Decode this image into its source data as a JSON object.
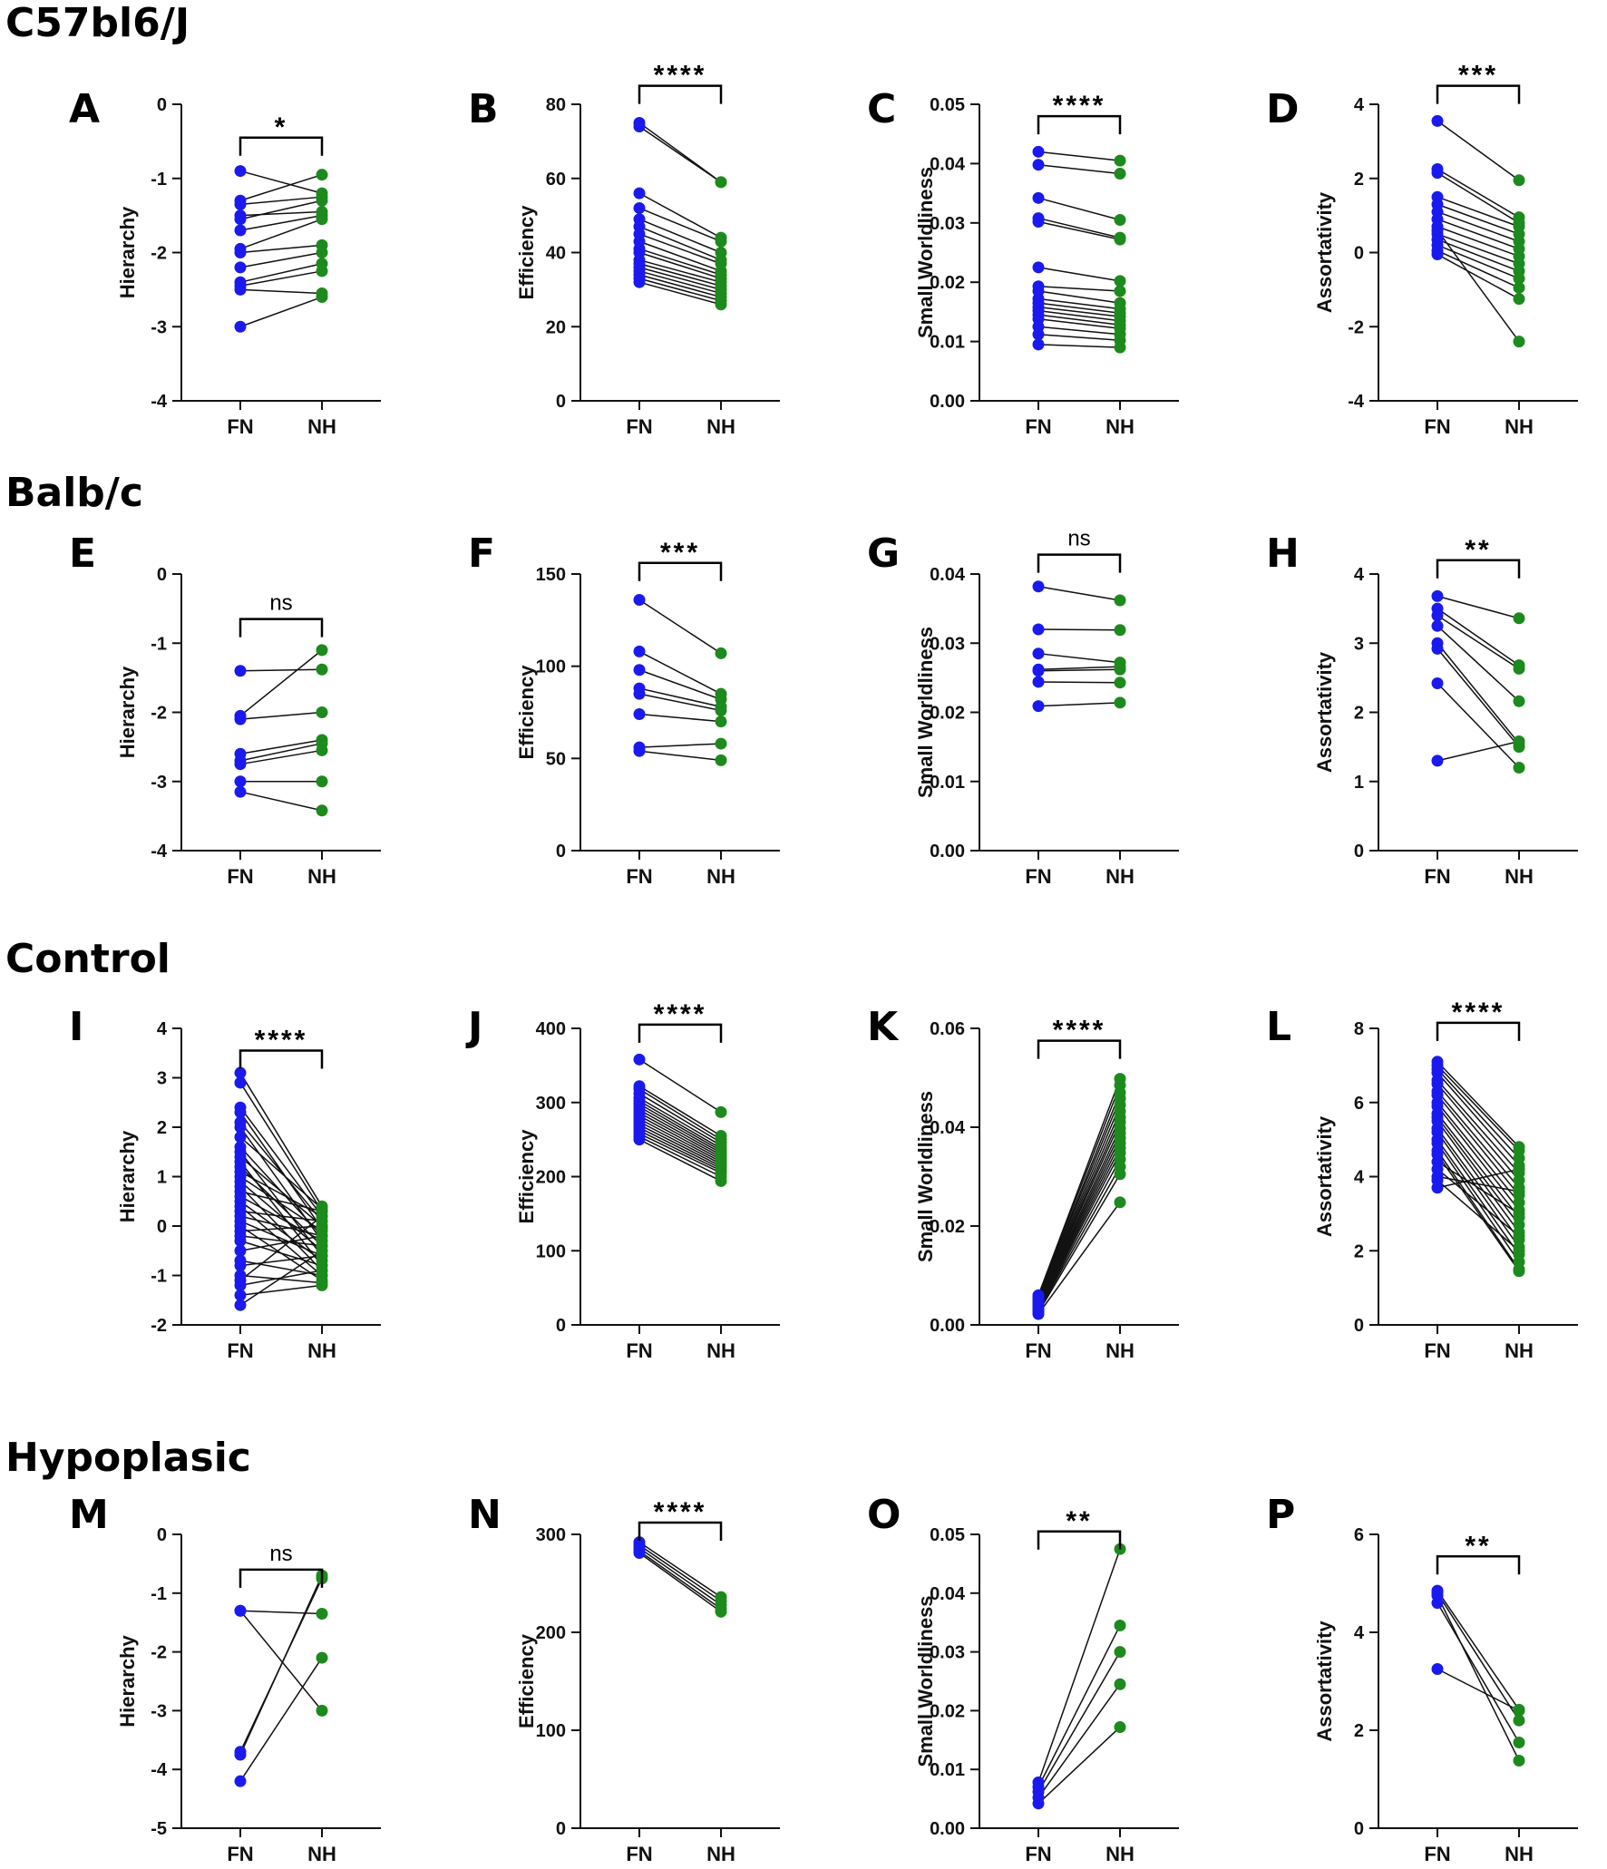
{
  "figure": {
    "colors": {
      "fn": "#1a1aee",
      "nh": "#1d8a1d",
      "line": "#111111",
      "axis": "#111111"
    },
    "row_titles": [
      "C57bl6/J",
      "Balb/c",
      "Control",
      "Hypoplasic"
    ]
  },
  "chart_data": [
    {
      "type": "paired-dot",
      "panel": "A",
      "row": 0,
      "col": 0,
      "title": "",
      "xlabel": "",
      "ylabel": "Hierarchy",
      "categories": [
        "FN",
        "NH"
      ],
      "ylim": [
        -4,
        0
      ],
      "ticks": [
        0,
        -1,
        -2,
        -3,
        -4
      ],
      "tick_labels": [
        "0",
        "-1",
        "-2",
        "-3",
        "-4"
      ],
      "significance": "*",
      "bracket_y": -0.45,
      "pairs": [
        [
          -0.9,
          -1.2
        ],
        [
          -1.3,
          -0.95
        ],
        [
          -1.35,
          -1.25
        ],
        [
          -1.5,
          -1.45
        ],
        [
          -1.55,
          -1.3
        ],
        [
          -1.7,
          -1.5
        ],
        [
          -1.95,
          -1.55
        ],
        [
          -2.0,
          -1.9
        ],
        [
          -2.2,
          -2.0
        ],
        [
          -2.4,
          -2.15
        ],
        [
          -2.45,
          -2.25
        ],
        [
          -2.5,
          -2.55
        ],
        [
          -3.0,
          -2.6
        ]
      ]
    },
    {
      "type": "paired-dot",
      "panel": "B",
      "row": 0,
      "col": 1,
      "title": "",
      "xlabel": "",
      "ylabel": "Efficiency",
      "categories": [
        "FN",
        "NH"
      ],
      "ylim": [
        0,
        80
      ],
      "ticks": [
        80,
        60,
        40,
        20,
        0
      ],
      "tick_labels": [
        "80",
        "60",
        "40",
        "20",
        "0"
      ],
      "significance": "****",
      "bracket_y": 85,
      "pairs": [
        [
          75,
          59
        ],
        [
          74,
          59
        ],
        [
          56,
          44
        ],
        [
          52,
          43
        ],
        [
          49,
          40
        ],
        [
          47,
          38
        ],
        [
          45,
          37
        ],
        [
          43,
          35
        ],
        [
          41,
          34
        ],
        [
          40,
          33
        ],
        [
          38,
          32
        ],
        [
          37,
          31
        ],
        [
          36,
          30
        ],
        [
          35,
          29
        ],
        [
          34,
          28
        ],
        [
          33,
          27
        ],
        [
          32,
          26
        ]
      ]
    },
    {
      "type": "paired-dot",
      "panel": "C",
      "row": 0,
      "col": 2,
      "title": "",
      "xlabel": "",
      "ylabel": "Small Worldliness",
      "categories": [
        "FN",
        "NH"
      ],
      "ylim": [
        0,
        0.05
      ],
      "ticks": [
        0.05,
        0.04,
        0.03,
        0.02,
        0.01,
        0.0
      ],
      "tick_labels": [
        "0.05",
        "0.04",
        "0.03",
        "0.02",
        "0.01",
        "0.00"
      ],
      "significance": "****",
      "bracket_y": 0.048,
      "pairs": [
        [
          0.042,
          0.0405
        ],
        [
          0.0398,
          0.0383
        ],
        [
          0.0342,
          0.0305
        ],
        [
          0.0308,
          0.0275
        ],
        [
          0.0302,
          0.0272
        ],
        [
          0.0225,
          0.0202
        ],
        [
          0.0193,
          0.0185
        ],
        [
          0.0185,
          0.0165
        ],
        [
          0.0172,
          0.0155
        ],
        [
          0.0165,
          0.0148
        ],
        [
          0.0158,
          0.0142
        ],
        [
          0.0152,
          0.0135
        ],
        [
          0.0145,
          0.0128
        ],
        [
          0.0138,
          0.0122
        ],
        [
          0.0125,
          0.0112
        ],
        [
          0.0112,
          0.0102
        ],
        [
          0.0095,
          0.009
        ]
      ]
    },
    {
      "type": "paired-dot",
      "panel": "D",
      "row": 0,
      "col": 3,
      "title": "",
      "xlabel": "",
      "ylabel": "Assortativity",
      "categories": [
        "FN",
        "NH"
      ],
      "ylim": [
        -4,
        4
      ],
      "ticks": [
        4,
        2,
        0,
        -2,
        -4
      ],
      "tick_labels": [
        "4",
        "2",
        "0",
        "-2",
        "-4"
      ],
      "significance": "***",
      "bracket_y": 4.5,
      "pairs": [
        [
          3.55,
          1.95
        ],
        [
          2.25,
          0.95
        ],
        [
          2.15,
          0.8
        ],
        [
          1.5,
          0.7
        ],
        [
          1.3,
          0.5
        ],
        [
          1.1,
          0.3
        ],
        [
          0.9,
          0.1
        ],
        [
          0.7,
          -0.1
        ],
        [
          0.5,
          -0.3
        ],
        [
          0.35,
          -0.5
        ],
        [
          0.2,
          -0.7
        ],
        [
          0.05,
          -0.95
        ],
        [
          -0.05,
          -1.25
        ],
        [
          0.6,
          -2.4
        ]
      ]
    },
    {
      "type": "paired-dot",
      "panel": "E",
      "row": 1,
      "col": 0,
      "title": "",
      "xlabel": "",
      "ylabel": "Hierarchy",
      "categories": [
        "FN",
        "NH"
      ],
      "ylim": [
        -4,
        0
      ],
      "ticks": [
        0,
        -1,
        -2,
        -3,
        -4
      ],
      "tick_labels": [
        "0",
        "-1",
        "-2",
        "-3",
        "-4"
      ],
      "significance": "ns",
      "bracket_y": -0.65,
      "pairs": [
        [
          -1.4,
          -1.38
        ],
        [
          -2.05,
          -1.1
        ],
        [
          -2.1,
          -2.0
        ],
        [
          -2.6,
          -2.4
        ],
        [
          -2.7,
          -2.45
        ],
        [
          -2.75,
          -2.55
        ],
        [
          -3.0,
          -3.0
        ],
        [
          -3.15,
          -3.42
        ]
      ]
    },
    {
      "type": "paired-dot",
      "panel": "F",
      "row": 1,
      "col": 1,
      "title": "",
      "xlabel": "",
      "ylabel": "Efficiency",
      "categories": [
        "FN",
        "NH"
      ],
      "ylim": [
        0,
        150
      ],
      "ticks": [
        150,
        100,
        50,
        0
      ],
      "tick_labels": [
        "150",
        "100",
        "50",
        "0"
      ],
      "significance": "***",
      "bracket_y": 156,
      "pairs": [
        [
          136,
          107
        ],
        [
          108,
          85
        ],
        [
          98,
          82
        ],
        [
          88,
          78
        ],
        [
          85,
          76
        ],
        [
          74,
          70
        ],
        [
          56,
          58
        ],
        [
          54,
          49
        ]
      ]
    },
    {
      "type": "paired-dot",
      "panel": "G",
      "row": 1,
      "col": 2,
      "title": "",
      "xlabel": "",
      "ylabel": "Small Worldliness",
      "categories": [
        "FN",
        "NH"
      ],
      "ylim": [
        0,
        0.04
      ],
      "ticks": [
        0.04,
        0.03,
        0.02,
        0.01,
        0.0
      ],
      "tick_labels": [
        "0.04",
        "0.03",
        "0.02",
        "0.01",
        "0.00"
      ],
      "significance": "ns",
      "bracket_y": 0.0428,
      "pairs": [
        [
          0.0382,
          0.0362
        ],
        [
          0.032,
          0.0319
        ],
        [
          0.0285,
          0.0272
        ],
        [
          0.0262,
          0.0266
        ],
        [
          0.026,
          0.0262
        ],
        [
          0.0244,
          0.0243
        ],
        [
          0.0209,
          0.0214
        ]
      ]
    },
    {
      "type": "paired-dot",
      "panel": "H",
      "row": 1,
      "col": 3,
      "title": "",
      "xlabel": "",
      "ylabel": "Assortativity",
      "categories": [
        "FN",
        "NH"
      ],
      "ylim": [
        0,
        4
      ],
      "ticks": [
        4,
        3,
        2,
        1,
        0
      ],
      "tick_labels": [
        "4",
        "3",
        "2",
        "1",
        "0"
      ],
      "significance": "**",
      "bracket_y": 4.2,
      "pairs": [
        [
          3.68,
          3.36
        ],
        [
          3.5,
          2.68
        ],
        [
          3.4,
          2.63
        ],
        [
          3.25,
          2.16
        ],
        [
          3.0,
          1.55
        ],
        [
          2.92,
          1.5
        ],
        [
          2.42,
          1.2
        ],
        [
          1.3,
          1.58
        ]
      ]
    },
    {
      "type": "paired-dot",
      "panel": "I",
      "row": 2,
      "col": 0,
      "title": "",
      "xlabel": "",
      "ylabel": "Hierarchy",
      "categories": [
        "FN",
        "NH"
      ],
      "ylim": [
        -2,
        4
      ],
      "ticks": [
        4,
        3,
        2,
        1,
        0,
        -1,
        -2
      ],
      "tick_labels": [
        "4",
        "3",
        "2",
        "1",
        "0",
        "-1",
        "-2"
      ],
      "significance": "****",
      "bracket_y": 3.55,
      "pairs": [
        [
          3.1,
          0.4
        ],
        [
          2.9,
          0.3
        ],
        [
          2.4,
          0.2
        ],
        [
          2.3,
          -0.05
        ],
        [
          2.1,
          0.1
        ],
        [
          2.0,
          -0.3
        ],
        [
          1.8,
          0.35
        ],
        [
          1.6,
          -0.2
        ],
        [
          1.5,
          -0.6
        ],
        [
          1.4,
          0.0
        ],
        [
          1.3,
          -0.8
        ],
        [
          1.2,
          -0.4
        ],
        [
          1.1,
          0.2
        ],
        [
          1.0,
          -0.1
        ],
        [
          0.9,
          -0.5
        ],
        [
          0.8,
          -0.9
        ],
        [
          0.7,
          0.3
        ],
        [
          0.6,
          -0.3
        ],
        [
          0.5,
          -0.7
        ],
        [
          0.4,
          -1.0
        ],
        [
          0.3,
          0.1
        ],
        [
          0.2,
          -0.2
        ],
        [
          0.1,
          -0.6
        ],
        [
          0.0,
          -1.1
        ],
        [
          -0.1,
          0.0
        ],
        [
          -0.2,
          -0.4
        ],
        [
          -0.3,
          -0.8
        ],
        [
          -0.5,
          -0.2
        ],
        [
          -0.7,
          -1.0
        ],
        [
          -0.8,
          -0.6
        ],
        [
          -1.0,
          -1.15
        ],
        [
          -1.1,
          0.2
        ],
        [
          -1.2,
          -0.9
        ],
        [
          -1.4,
          -1.2
        ],
        [
          -1.6,
          -0.5
        ]
      ]
    },
    {
      "type": "paired-dot",
      "panel": "J",
      "row": 2,
      "col": 1,
      "title": "",
      "xlabel": "",
      "ylabel": "Efficiency",
      "categories": [
        "FN",
        "NH"
      ],
      "ylim": [
        0,
        400
      ],
      "ticks": [
        400,
        300,
        200,
        100,
        0
      ],
      "tick_labels": [
        "400",
        "300",
        "200",
        "100",
        "0"
      ],
      "significance": "****",
      "bracket_y": 405,
      "pairs": [
        [
          358,
          287
        ],
        [
          322,
          255
        ],
        [
          318,
          250
        ],
        [
          312,
          246
        ],
        [
          306,
          242
        ],
        [
          302,
          238
        ],
        [
          298,
          235
        ],
        [
          294,
          232
        ],
        [
          290,
          229
        ],
        [
          286,
          226
        ],
        [
          282,
          223
        ],
        [
          278,
          220
        ],
        [
          274,
          217
        ],
        [
          270,
          214
        ],
        [
          266,
          211
        ],
        [
          262,
          208
        ],
        [
          258,
          205
        ],
        [
          254,
          200
        ],
        [
          250,
          194
        ]
      ]
    },
    {
      "type": "paired-dot",
      "panel": "K",
      "row": 2,
      "col": 2,
      "title": "",
      "xlabel": "",
      "ylabel": "Small Worldliness",
      "categories": [
        "FN",
        "NH"
      ],
      "ylim": [
        0,
        0.06
      ],
      "ticks": [
        0.06,
        0.04,
        0.02,
        0.0
      ],
      "tick_labels": [
        "0.06",
        "0.04",
        "0.02",
        "0.00"
      ],
      "significance": "****",
      "bracket_y": 0.0575,
      "pairs": [
        [
          0.006,
          0.0498
        ],
        [
          0.0058,
          0.0485
        ],
        [
          0.0055,
          0.047
        ],
        [
          0.0053,
          0.0458
        ],
        [
          0.005,
          0.0445
        ],
        [
          0.0048,
          0.0432
        ],
        [
          0.0046,
          0.042
        ],
        [
          0.0044,
          0.041
        ],
        [
          0.0042,
          0.0398
        ],
        [
          0.004,
          0.0388
        ],
        [
          0.0038,
          0.0378
        ],
        [
          0.0036,
          0.0368
        ],
        [
          0.0034,
          0.0358
        ],
        [
          0.0032,
          0.0348
        ],
        [
          0.003,
          0.0335
        ],
        [
          0.0028,
          0.032
        ],
        [
          0.0025,
          0.0305
        ],
        [
          0.0022,
          0.0248
        ]
      ]
    },
    {
      "type": "paired-dot",
      "panel": "L",
      "row": 2,
      "col": 3,
      "title": "",
      "xlabel": "",
      "ylabel": "Assortativity",
      "categories": [
        "FN",
        "NH"
      ],
      "ylim": [
        0,
        8
      ],
      "ticks": [
        8,
        6,
        4,
        2,
        0
      ],
      "tick_labels": [
        "8",
        "6",
        "4",
        "2",
        "0"
      ],
      "significance": "****",
      "bracket_y": 8.15,
      "pairs": [
        [
          7.1,
          4.8
        ],
        [
          7.0,
          4.7
        ],
        [
          6.9,
          4.5
        ],
        [
          6.8,
          4.3
        ],
        [
          6.6,
          4.1
        ],
        [
          6.5,
          3.9
        ],
        [
          6.3,
          3.7
        ],
        [
          6.2,
          3.5
        ],
        [
          6.0,
          3.3
        ],
        [
          5.9,
          3.1
        ],
        [
          5.7,
          2.9
        ],
        [
          5.6,
          2.7
        ],
        [
          5.5,
          2.5
        ],
        [
          5.3,
          2.3
        ],
        [
          5.2,
          2.1
        ],
        [
          5.0,
          1.9
        ],
        [
          4.9,
          1.7
        ],
        [
          4.7,
          1.5
        ],
        [
          4.6,
          1.45
        ],
        [
          4.4,
          3.0
        ],
        [
          4.2,
          2.4
        ],
        [
          4.0,
          3.6
        ],
        [
          3.9,
          2.0
        ],
        [
          3.7,
          4.2
        ]
      ]
    },
    {
      "type": "paired-dot",
      "panel": "M",
      "row": 3,
      "col": 0,
      "title": "",
      "xlabel": "",
      "ylabel": "Hierarchy",
      "categories": [
        "FN",
        "NH"
      ],
      "ylim": [
        -5,
        0
      ],
      "ticks": [
        0,
        -1,
        -2,
        -3,
        -4,
        -5
      ],
      "tick_labels": [
        "0",
        "-1",
        "-2",
        "-3",
        "-4",
        "-5"
      ],
      "significance": "ns",
      "bracket_y": -0.6,
      "pairs": [
        [
          -1.3,
          -1.35
        ],
        [
          -1.3,
          -3.0
        ],
        [
          -3.7,
          -0.75
        ],
        [
          -3.75,
          -0.7
        ],
        [
          -4.2,
          -2.1
        ]
      ]
    },
    {
      "type": "paired-dot",
      "panel": "N",
      "row": 3,
      "col": 1,
      "title": "",
      "xlabel": "",
      "ylabel": "Efficiency",
      "categories": [
        "FN",
        "NH"
      ],
      "ylim": [
        0,
        300
      ],
      "ticks": [
        300,
        200,
        100,
        0
      ],
      "tick_labels": [
        "300",
        "200",
        "100",
        "0"
      ],
      "significance": "****",
      "bracket_y": 312,
      "pairs": [
        [
          292,
          236
        ],
        [
          289,
          232
        ],
        [
          286,
          228
        ],
        [
          283,
          224
        ],
        [
          281,
          221
        ]
      ]
    },
    {
      "type": "paired-dot",
      "panel": "O",
      "row": 3,
      "col": 2,
      "title": "",
      "xlabel": "",
      "ylabel": "Small Worldliness",
      "categories": [
        "FN",
        "NH"
      ],
      "ylim": [
        0,
        0.05
      ],
      "ticks": [
        0.05,
        0.04,
        0.03,
        0.02,
        0.01,
        0.0
      ],
      "tick_labels": [
        "0.05",
        "0.04",
        "0.03",
        "0.02",
        "0.01",
        "0.00"
      ],
      "significance": "**",
      "bracket_y": 0.0505,
      "pairs": [
        [
          0.0078,
          0.0475
        ],
        [
          0.007,
          0.0345
        ],
        [
          0.0062,
          0.03
        ],
        [
          0.0052,
          0.0245
        ],
        [
          0.0042,
          0.0172
        ]
      ]
    },
    {
      "type": "paired-dot",
      "panel": "P",
      "row": 3,
      "col": 3,
      "title": "",
      "xlabel": "",
      "ylabel": "Assortativity",
      "categories": [
        "FN",
        "NH"
      ],
      "ylim": [
        0,
        6
      ],
      "ticks": [
        6,
        4,
        2,
        0
      ],
      "tick_labels": [
        "6",
        "4",
        "2",
        "0"
      ],
      "significance": "**",
      "bracket_y": 5.55,
      "pairs": [
        [
          4.85,
          2.42
        ],
        [
          4.8,
          2.2
        ],
        [
          4.6,
          1.75
        ],
        [
          3.25,
          2.4
        ],
        [
          4.75,
          1.38
        ]
      ]
    }
  ]
}
